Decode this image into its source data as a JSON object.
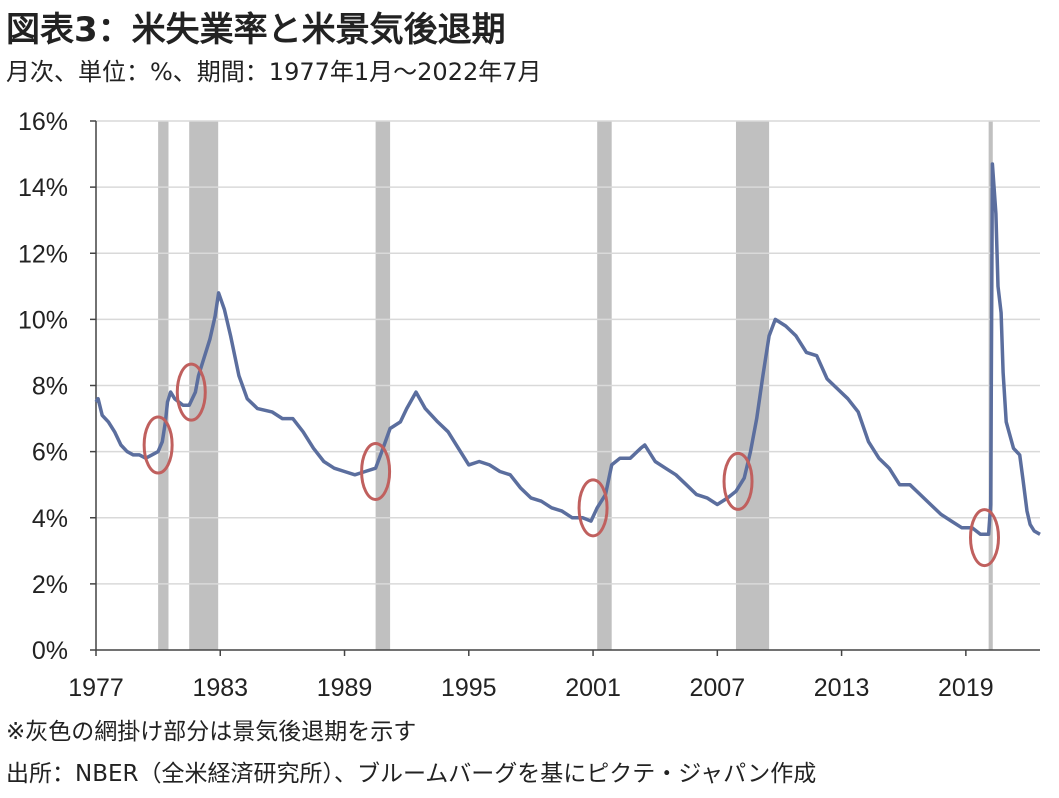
{
  "title": "図表3：米失業率と米景気後退期",
  "subtitle": "月次、単位：%、期間：1977年1月～2022年7月",
  "notes": [
    "※灰色の網掛け部分は景気後退期を示す",
    "出所：NBER（全米経済研究所）、ブルームバーグを基にピクテ・ジャパン作成"
  ],
  "chart_data": {
    "type": "line",
    "title": "図表3：米失業率と米景気後退期",
    "xlabel": "",
    "ylabel": "",
    "x_ticks": [
      "1977",
      "1983",
      "1989",
      "1995",
      "2001",
      "2007",
      "2013",
      "2019"
    ],
    "y_ticks": [
      "0%",
      "2%",
      "4%",
      "6%",
      "8%",
      "10%",
      "12%",
      "14%",
      "16%"
    ],
    "xlim": [
      1977.0,
      2022.58
    ],
    "ylim": [
      0,
      16
    ],
    "grid": "horizontal",
    "series": [
      {
        "name": "",
        "color": "#5B6E9E",
        "points": [
          [
            1977.0,
            7.5
          ],
          [
            1977.1,
            7.6
          ],
          [
            1977.3,
            7.1
          ],
          [
            1977.6,
            6.9
          ],
          [
            1977.9,
            6.6
          ],
          [
            1978.2,
            6.2
          ],
          [
            1978.5,
            6.0
          ],
          [
            1978.8,
            5.9
          ],
          [
            1979.1,
            5.9
          ],
          [
            1979.4,
            5.8
          ],
          [
            1979.7,
            5.9
          ],
          [
            1980.0,
            6.0
          ],
          [
            1980.2,
            6.3
          ],
          [
            1980.35,
            6.9
          ],
          [
            1980.45,
            7.5
          ],
          [
            1980.6,
            7.8
          ],
          [
            1980.8,
            7.6
          ],
          [
            1981.2,
            7.4
          ],
          [
            1981.5,
            7.4
          ],
          [
            1981.8,
            7.8
          ],
          [
            1981.95,
            8.3
          ],
          [
            1982.2,
            8.8
          ],
          [
            1982.5,
            9.4
          ],
          [
            1982.75,
            10.1
          ],
          [
            1982.92,
            10.8
          ],
          [
            1983.2,
            10.3
          ],
          [
            1983.5,
            9.5
          ],
          [
            1983.9,
            8.3
          ],
          [
            1984.3,
            7.6
          ],
          [
            1984.8,
            7.3
          ],
          [
            1985.5,
            7.2
          ],
          [
            1986.0,
            7.0
          ],
          [
            1986.5,
            7.0
          ],
          [
            1987.0,
            6.6
          ],
          [
            1987.5,
            6.1
          ],
          [
            1988.0,
            5.7
          ],
          [
            1988.5,
            5.5
          ],
          [
            1989.0,
            5.4
          ],
          [
            1989.5,
            5.3
          ],
          [
            1990.0,
            5.4
          ],
          [
            1990.5,
            5.5
          ],
          [
            1990.8,
            6.0
          ],
          [
            1991.2,
            6.7
          ],
          [
            1991.7,
            6.9
          ],
          [
            1992.0,
            7.3
          ],
          [
            1992.45,
            7.8
          ],
          [
            1992.9,
            7.3
          ],
          [
            1993.5,
            6.9
          ],
          [
            1994.0,
            6.6
          ],
          [
            1994.5,
            6.1
          ],
          [
            1995.0,
            5.6
          ],
          [
            1995.5,
            5.7
          ],
          [
            1996.0,
            5.6
          ],
          [
            1996.5,
            5.4
          ],
          [
            1997.0,
            5.3
          ],
          [
            1997.5,
            4.9
          ],
          [
            1998.0,
            4.6
          ],
          [
            1998.5,
            4.5
          ],
          [
            1999.0,
            4.3
          ],
          [
            1999.5,
            4.2
          ],
          [
            2000.0,
            4.0
          ],
          [
            2000.5,
            4.0
          ],
          [
            2000.9,
            3.9
          ],
          [
            2001.2,
            4.3
          ],
          [
            2001.6,
            4.7
          ],
          [
            2001.9,
            5.6
          ],
          [
            2002.3,
            5.8
          ],
          [
            2002.8,
            5.8
          ],
          [
            2003.3,
            6.1
          ],
          [
            2003.5,
            6.2
          ],
          [
            2004.0,
            5.7
          ],
          [
            2004.5,
            5.5
          ],
          [
            2005.0,
            5.3
          ],
          [
            2005.5,
            5.0
          ],
          [
            2006.0,
            4.7
          ],
          [
            2006.5,
            4.6
          ],
          [
            2007.0,
            4.4
          ],
          [
            2007.5,
            4.6
          ],
          [
            2007.9,
            4.8
          ],
          [
            2008.3,
            5.2
          ],
          [
            2008.6,
            6.0
          ],
          [
            2008.9,
            7.0
          ],
          [
            2009.2,
            8.3
          ],
          [
            2009.5,
            9.5
          ],
          [
            2009.8,
            10.0
          ],
          [
            2010.3,
            9.8
          ],
          [
            2010.8,
            9.5
          ],
          [
            2011.3,
            9.0
          ],
          [
            2011.8,
            8.9
          ],
          [
            2012.3,
            8.2
          ],
          [
            2012.8,
            7.9
          ],
          [
            2013.3,
            7.6
          ],
          [
            2013.8,
            7.2
          ],
          [
            2014.3,
            6.3
          ],
          [
            2014.8,
            5.8
          ],
          [
            2015.3,
            5.5
          ],
          [
            2015.8,
            5.0
          ],
          [
            2016.3,
            5.0
          ],
          [
            2016.8,
            4.7
          ],
          [
            2017.3,
            4.4
          ],
          [
            2017.8,
            4.1
          ],
          [
            2018.3,
            3.9
          ],
          [
            2018.8,
            3.7
          ],
          [
            2019.3,
            3.7
          ],
          [
            2019.7,
            3.5
          ],
          [
            2020.1,
            3.5
          ],
          [
            2020.2,
            4.4
          ],
          [
            2020.28,
            14.7
          ],
          [
            2020.45,
            13.2
          ],
          [
            2020.55,
            11.0
          ],
          [
            2020.7,
            10.2
          ],
          [
            2020.8,
            8.4
          ],
          [
            2020.95,
            6.9
          ],
          [
            2021.3,
            6.1
          ],
          [
            2021.6,
            5.9
          ],
          [
            2021.75,
            5.2
          ],
          [
            2021.95,
            4.2
          ],
          [
            2022.1,
            3.8
          ],
          [
            2022.3,
            3.6
          ],
          [
            2022.58,
            3.5
          ]
        ]
      }
    ],
    "recessions": [
      [
        1980.0,
        1980.5
      ],
      [
        1981.5,
        1982.9
      ],
      [
        1990.5,
        1991.2
      ],
      [
        2001.2,
        2001.9
      ],
      [
        2007.9,
        2009.5
      ],
      [
        2020.1,
        2020.3
      ]
    ],
    "annotations": {
      "type": "circle",
      "color": "#C0605E",
      "points": [
        [
          1980.0,
          6.2
        ],
        [
          1981.6,
          7.8
        ],
        [
          1990.5,
          5.4
        ],
        [
          2001.0,
          4.3
        ],
        [
          2008.0,
          5.1
        ],
        [
          2019.9,
          3.4
        ]
      ]
    }
  }
}
